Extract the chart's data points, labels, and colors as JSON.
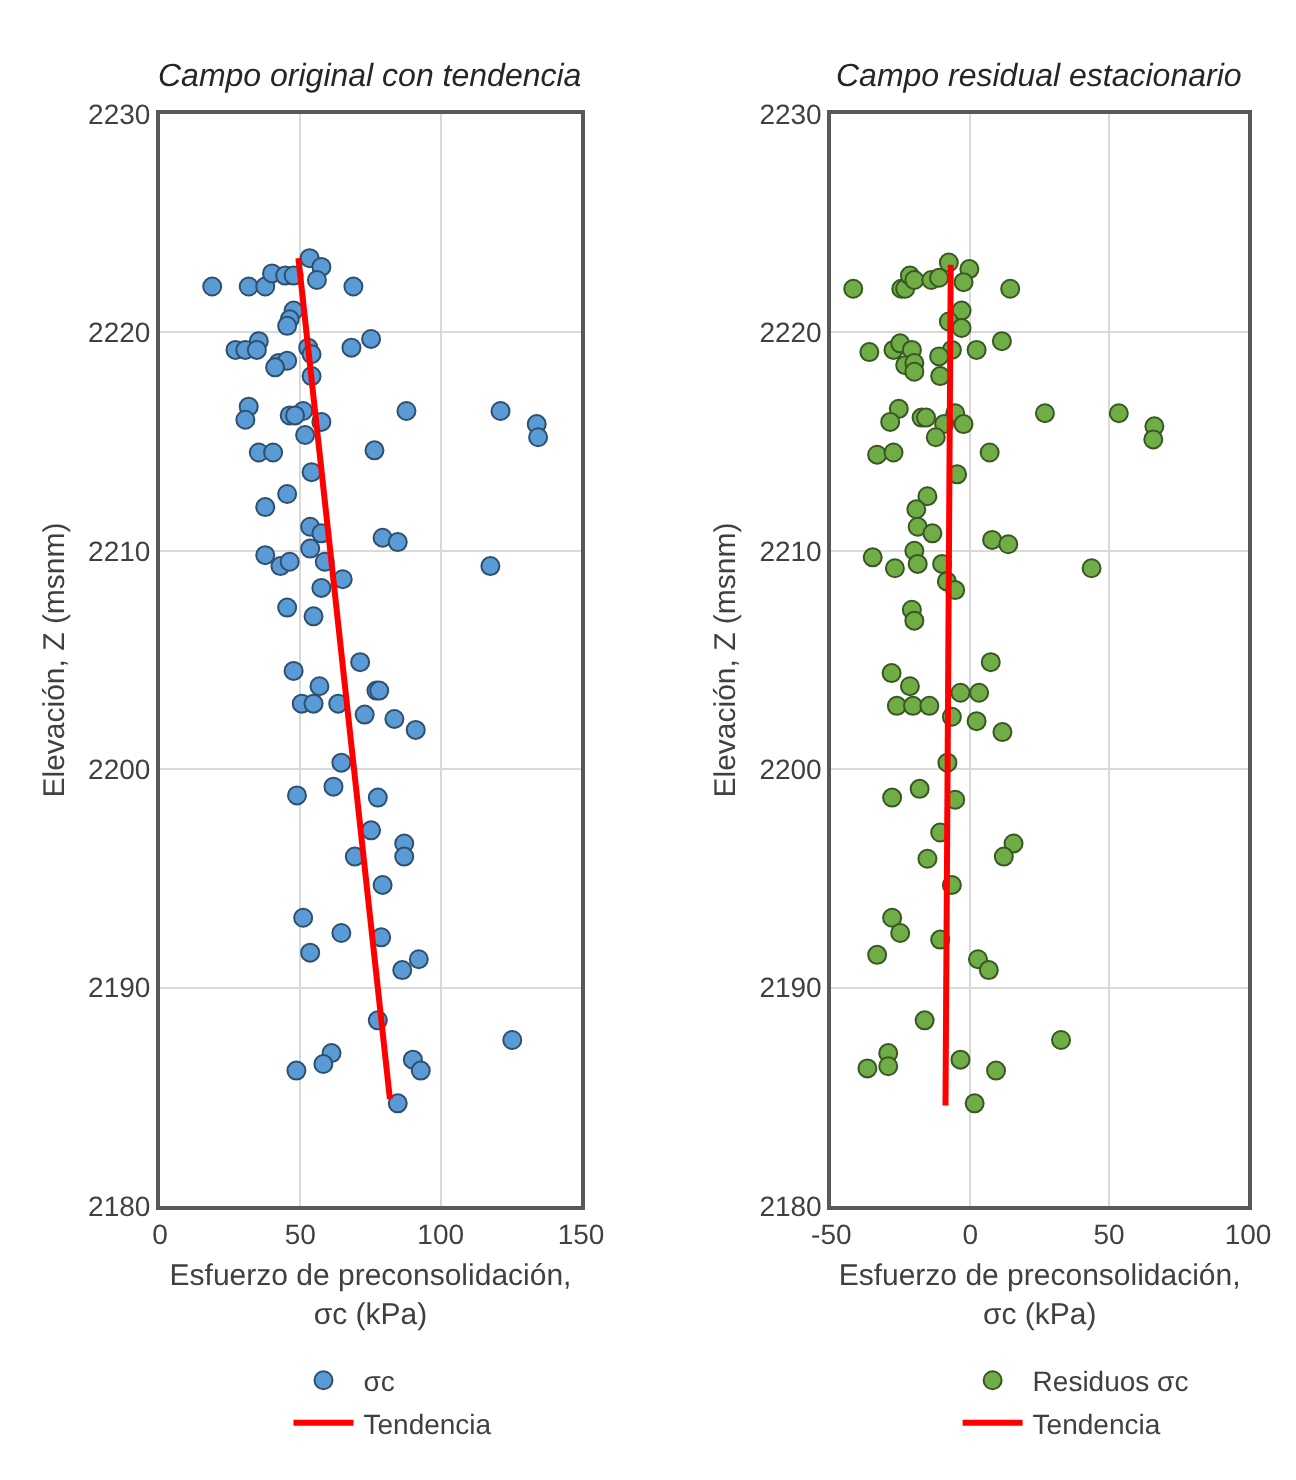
{
  "chart_data": [
    {
      "type": "scatter",
      "title": "Campo original con tendencia",
      "xlabel": "Esfuerzo de preconsolidación,\nσc (kPa)",
      "ylabel": "Elevación, Z (msnm)",
      "xlim": [
        0,
        150
      ],
      "xticks": [
        0,
        50,
        100,
        150
      ],
      "ylim": [
        2180,
        2230
      ],
      "yticks": [
        2180,
        2190,
        2200,
        2210,
        2220,
        2230
      ],
      "grid": true,
      "legend": "bottom",
      "series": [
        {
          "name": "σc",
          "marker": "circle",
          "color": "#5b9bd5",
          "x": [
            18.6,
            31.6,
            37.5,
            39.9,
            44.6,
            47.6,
            53.3,
            57.5,
            55.9,
            68.9,
            47.6,
            46.2,
            45.3,
            35.2,
            75.2,
            26.9,
            30.4,
            34.5,
            52.8,
            68.2,
            54.0,
            42.2,
            45.3,
            41.0,
            54.0,
            31.6,
            30.4,
            46.2,
            51.0,
            48.1,
            57.5,
            51.7,
            87.8,
            121.3,
            134.2,
            134.7,
            35.2,
            40.3,
            76.4,
            54.0,
            45.3,
            37.5,
            53.5,
            57.5,
            79.3,
            84.7,
            53.5,
            37.5,
            42.9,
            46.2,
            58.7,
            117.7,
            65.1,
            57.5,
            45.3,
            54.7,
            71.3,
            47.6,
            56.8,
            77.1,
            78.1,
            50.5,
            54.7,
            63.5,
            72.9,
            83.5,
            91.1,
            64.6,
            48.8,
            61.8,
            77.6,
            75.2,
            87.0,
            87.0,
            69.4,
            79.3,
            51.0,
            64.6,
            78.8,
            53.5,
            92.2,
            86.3,
            77.6,
            125.5,
            61.1,
            58.2,
            90.1,
            92.9,
            48.6,
            84.7
          ],
          "values": [
            2222.1,
            2222.1,
            2222.1,
            2222.7,
            2222.6,
            2222.6,
            2223.4,
            2223.0,
            2222.4,
            2222.1,
            2221.0,
            2220.6,
            2220.3,
            2219.6,
            2219.7,
            2219.2,
            2219.2,
            2219.2,
            2219.3,
            2219.3,
            2219.0,
            2218.6,
            2218.7,
            2218.4,
            2218.0,
            2216.6,
            2216.0,
            2216.2,
            2216.4,
            2216.2,
            2215.9,
            2215.3,
            2216.4,
            2216.4,
            2215.8,
            2215.2,
            2214.5,
            2214.5,
            2214.6,
            2213.6,
            2212.6,
            2212.0,
            2211.1,
            2210.8,
            2210.6,
            2210.4,
            2210.1,
            2209.8,
            2209.3,
            2209.5,
            2209.5,
            2209.3,
            2208.7,
            2208.3,
            2207.4,
            2207.0,
            2204.9,
            2204.5,
            2203.8,
            2203.6,
            2203.6,
            2203.0,
            2203.0,
            2203.0,
            2202.5,
            2202.3,
            2201.8,
            2200.3,
            2198.8,
            2199.2,
            2198.7,
            2197.2,
            2196.6,
            2196.0,
            2196.0,
            2194.7,
            2193.2,
            2192.5,
            2192.3,
            2191.6,
            2191.3,
            2190.8,
            2188.5,
            2187.6,
            2187.0,
            2186.5,
            2186.7,
            2186.2,
            2186.2,
            2184.7
          ]
        },
        {
          "name": "Tendencia",
          "type": "line",
          "marker": "none",
          "color": "#ff0000",
          "x": [
            49.3,
            81.9
          ],
          "values": [
            2223.4,
            2184.9
          ]
        }
      ]
    },
    {
      "type": "scatter",
      "title": "Campo residual estacionario",
      "xlabel": "Esfuerzo de preconsolidación,\nσc (kPa)",
      "ylabel": "Elevación, Z (msnm)",
      "xlim": [
        -50,
        100
      ],
      "xticks": [
        -50,
        0,
        50,
        100
      ],
      "ylim": [
        2180,
        2230
      ],
      "yticks": [
        2180,
        2190,
        2200,
        2210,
        2220,
        2230
      ],
      "grid": true,
      "legend": "bottom",
      "series": [
        {
          "name": "Residuos σc",
          "marker": "circle",
          "color": "#70ad47",
          "x": [
            -42.1,
            -24.8,
            -23.4,
            -21.7,
            -20.1,
            -14.0,
            -11.2,
            -7.7,
            -0.3,
            -2.4,
            14.4,
            -3.1,
            -7.7,
            -3.1,
            11.4,
            -36.3,
            -27.6,
            -25.2,
            -21.0,
            -6.6,
            2.3,
            -11.2,
            -23.4,
            -20.1,
            -20.1,
            -10.8,
            -25.7,
            -28.8,
            -17.5,
            -15.9,
            -5.4,
            -9.4,
            -2.4,
            -12.4,
            26.9,
            53.5,
            66.3,
            65.9,
            -33.5,
            -27.6,
            7.0,
            -4.7,
            -15.4,
            -19.4,
            -18.9,
            -13.6,
            7.9,
            13.7,
            -20.1,
            -35.1,
            -27.1,
            -18.9,
            -10.1,
            43.7,
            -8.4,
            -5.4,
            -21.0,
            -20.1,
            7.4,
            -28.3,
            -21.7,
            -3.5,
            3.2,
            -26.4,
            -20.6,
            -14.7,
            -6.6,
            2.3,
            11.6,
            -8.2,
            -28.1,
            -18.2,
            -5.4,
            -10.8,
            15.6,
            12.1,
            -15.4,
            -6.6,
            -28.1,
            -25.2,
            -10.8,
            -33.5,
            2.8,
            6.7,
            -16.4,
            32.7,
            -29.5,
            -29.5,
            -37.0,
            -3.5,
            9.3,
            1.6
          ],
          "values": [
            2222.0,
            2222.0,
            2222.0,
            2222.6,
            2222.4,
            2222.4,
            2222.5,
            2223.2,
            2222.9,
            2222.3,
            2222.0,
            2221.0,
            2220.5,
            2220.2,
            2219.6,
            2219.1,
            2219.2,
            2219.5,
            2219.2,
            2219.2,
            2219.2,
            2218.9,
            2218.5,
            2218.6,
            2218.2,
            2218.0,
            2216.5,
            2215.9,
            2216.1,
            2216.1,
            2216.3,
            2215.8,
            2215.8,
            2215.2,
            2216.3,
            2216.3,
            2215.7,
            2215.1,
            2214.4,
            2214.5,
            2214.5,
            2213.5,
            2212.5,
            2211.9,
            2211.1,
            2210.8,
            2210.5,
            2210.3,
            2210.0,
            2209.7,
            2209.2,
            2209.4,
            2209.4,
            2209.2,
            2208.6,
            2208.2,
            2207.3,
            2206.8,
            2204.9,
            2204.4,
            2203.8,
            2203.5,
            2203.5,
            2202.9,
            2202.9,
            2202.9,
            2202.4,
            2202.2,
            2201.7,
            2200.3,
            2198.7,
            2199.1,
            2198.6,
            2197.1,
            2196.6,
            2196.0,
            2195.9,
            2194.7,
            2193.2,
            2192.5,
            2192.2,
            2191.5,
            2191.3,
            2190.8,
            2188.5,
            2187.6,
            2187.0,
            2186.4,
            2186.3,
            2186.7,
            2186.2,
            2184.7
          ]
        },
        {
          "name": "Tendencia",
          "type": "line",
          "marker": "none",
          "color": "#ff0000",
          "x": [
            -7.0,
            -8.9
          ],
          "values": [
            2223.1,
            2184.6
          ]
        }
      ]
    }
  ]
}
